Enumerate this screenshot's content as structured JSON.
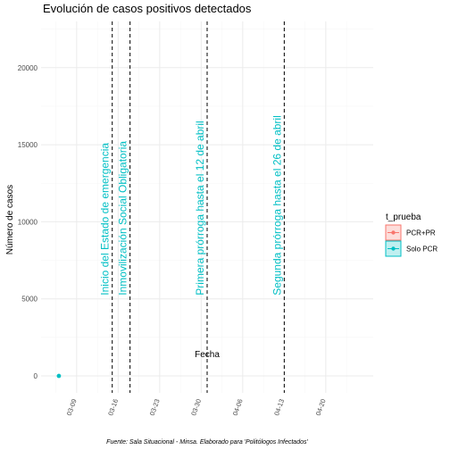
{
  "chart_data": {
    "type": "scatter",
    "title": "Evolución de casos positivos detectados",
    "xlabel": "Fecha",
    "ylabel": "Número de casos",
    "caption": "Fuente: Sala Situacional - Minsa. Elaborado para 'Politólogos Infectados'",
    "x_axis_type": "date",
    "xlim": [
      "2020-03-03",
      "2020-04-28"
    ],
    "ylim": [
      -1100,
      23000
    ],
    "x_ticks": [
      "2020-03-09",
      "2020-03-16",
      "2020-03-23",
      "2020-03-30",
      "2020-04-06",
      "2020-04-13",
      "2020-04-20"
    ],
    "x_tick_labels": [
      "03-09",
      "03-16",
      "03-23",
      "03-30",
      "04-06",
      "04-13",
      "04-20"
    ],
    "y_ticks": [
      0,
      5000,
      10000,
      15000,
      20000
    ],
    "y_tick_labels": [
      "0",
      "5000",
      "10000",
      "15000",
      "20000"
    ],
    "grid": true,
    "legend": {
      "title": "t_prueba",
      "placement": "right",
      "entries": [
        {
          "label": "PCR+PR",
          "color": "#F8766D"
        },
        {
          "label": "Solo PCR",
          "color": "#00BFC4"
        }
      ]
    },
    "series": [
      {
        "name": "Solo PCR",
        "color": "#00BFC4",
        "points": [
          {
            "x": "2020-03-06",
            "y": 0
          }
        ]
      }
    ],
    "vlines": [
      {
        "x": "2020-03-15",
        "label": "Inicio del Estado de emergencia"
      },
      {
        "x": "2020-03-18",
        "label": "Inmovilización Social Obligatoria"
      },
      {
        "x": "2020-03-31",
        "label": "Primera prórroga hasta el 12 de abril"
      },
      {
        "x": "2020-04-13",
        "label": "Segunda prórroga hasta el 26 de abril"
      }
    ],
    "annotation_color": "#00BFC4"
  }
}
